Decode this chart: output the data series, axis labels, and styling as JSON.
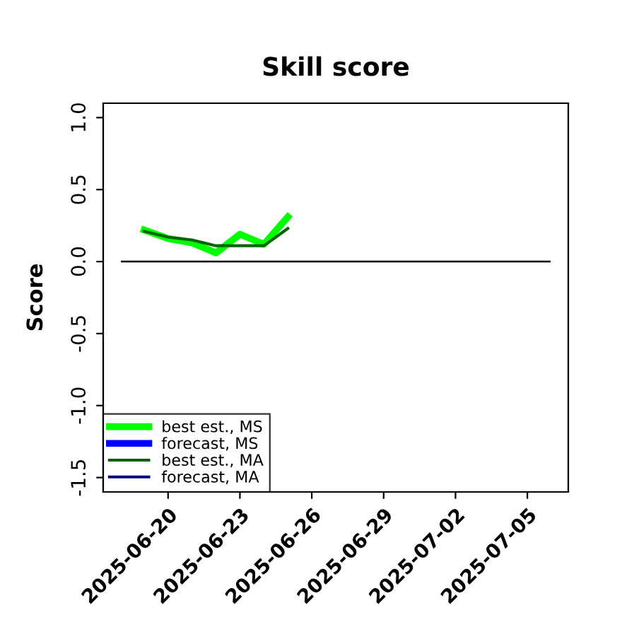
{
  "chart_data": {
    "type": "line",
    "title": "Skill score",
    "ylabel": "Score",
    "x": [
      "2025-06-19",
      "2025-06-20",
      "2025-06-21",
      "2025-06-22",
      "2025-06-23",
      "2025-06-24",
      "2025-06-25"
    ],
    "series": [
      {
        "name": "best est., MS",
        "color": "#00ff00",
        "values": [
          0.22,
          0.16,
          0.13,
          0.06,
          0.19,
          0.12,
          0.31
        ]
      },
      {
        "name": "forecast, MS",
        "color": "#0000ff",
        "values": [
          null,
          null,
          null,
          null,
          null,
          null,
          null
        ]
      },
      {
        "name": "best est., MA",
        "color": "#006400",
        "values": [
          0.21,
          0.17,
          0.15,
          0.11,
          0.11,
          0.11,
          0.23
        ]
      },
      {
        "name": "forecast, MA",
        "color": "#00008b",
        "values": [
          null,
          null,
          null,
          null,
          null,
          null,
          null
        ]
      }
    ],
    "xlim": [
      "2025-06-17T07:00",
      "2025-07-06T17:00"
    ],
    "xticks": [
      "2025-06-20",
      "2025-06-23",
      "2025-06-26",
      "2025-06-29",
      "2025-07-02",
      "2025-07-05"
    ],
    "ylim": [
      -1.6,
      1.1
    ],
    "yticks": [
      -1.5,
      {
        "value": -1,
        "label": "-1.0"
      },
      -0.5,
      {
        "value": 0,
        "label": "0.0"
      },
      0.5,
      {
        "value": 1,
        "label": "1.0"
      }
    ],
    "ref_lines": [
      {
        "axis": "y",
        "value": 0,
        "color": "#000000"
      }
    ],
    "legend": "bottom left",
    "grid": false,
    "line_style": "solid",
    "marker": "none"
  }
}
